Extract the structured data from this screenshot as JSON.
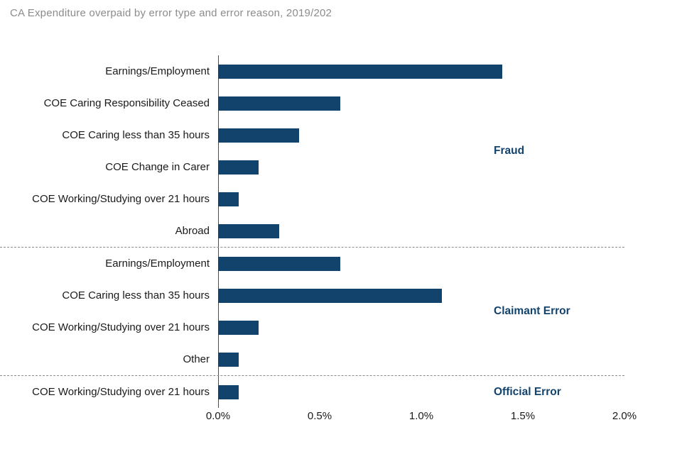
{
  "chart_data": {
    "type": "bar",
    "orientation": "horizontal",
    "title": "CA Expenditure overpaid by error type and error reason, 2019/202",
    "xlabel": "",
    "ylabel": "",
    "xlim": [
      0,
      2.0
    ],
    "x_ticks": [
      "0.0%",
      "0.5%",
      "1.0%",
      "1.5%",
      "2.0%"
    ],
    "grid": false,
    "legend": false,
    "bar_color": "#12436D",
    "accent_color": "#12436D",
    "groups": [
      {
        "label": "Fraud",
        "rows": [
          {
            "label": "Earnings/Employment",
            "value": 1.4
          },
          {
            "label": "COE Caring Responsibility Ceased",
            "value": 0.6
          },
          {
            "label": "COE Caring less than 35 hours",
            "value": 0.4
          },
          {
            "label": "COE Change in Carer",
            "value": 0.2
          },
          {
            "label": "COE Working/Studying over 21 hours",
            "value": 0.1
          },
          {
            "label": "Abroad",
            "value": 0.3
          }
        ]
      },
      {
        "label": "Claimant Error",
        "rows": [
          {
            "label": "Earnings/Employment",
            "value": 0.6
          },
          {
            "label": "COE Caring less than 35 hours",
            "value": 1.1
          },
          {
            "label": "COE Working/Studying over 21 hours",
            "value": 0.2
          },
          {
            "label": "Other",
            "value": 0.1
          }
        ]
      },
      {
        "label": "Official Error",
        "rows": [
          {
            "label": "COE Working/Studying over 21 hours",
            "value": 0.1
          }
        ]
      }
    ]
  }
}
